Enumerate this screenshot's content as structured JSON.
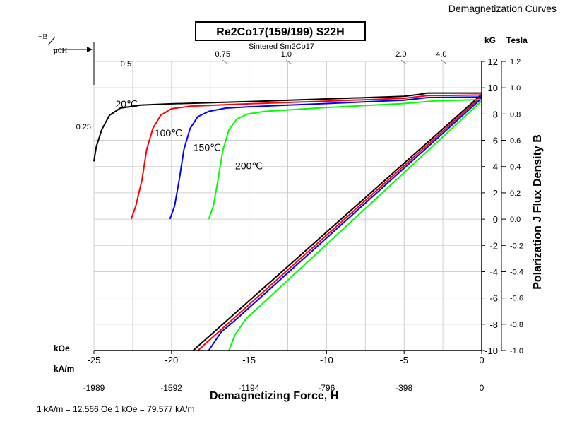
{
  "header": {
    "title": "Demagnetization Curves"
  },
  "title_box": "Re2Co17(159/199) S22H",
  "subtitle": "Sintered Sm2Co17",
  "footer_note": "1 kA/m = 12.566 Oe 1 kOe = 79.577 kA/m",
  "axes": {
    "x_label": "Demagnetizing Force, H",
    "koe_label": "kOe",
    "kam_label": "kA/m",
    "y_left_unit": "kG",
    "y_right_unit": "Tesla",
    "y_title": "Polarization J Flux Density B",
    "b_symbol": "−B",
    "mu_h_symbol": "μ0H"
  },
  "chart_data": {
    "type": "line",
    "title": "Re2Co17(159/199) S22H",
    "xlabel": "Demagnetizing Force, H",
    "ylabel": "Polarization J Flux Density B",
    "x_unit": "kOe",
    "y_unit": "kG",
    "xlim": [
      -25,
      0
    ],
    "ylim": [
      -10,
      12
    ],
    "grid": true,
    "x_ticks_koe": [
      -25,
      -20,
      -15,
      -10,
      -5,
      0
    ],
    "x_ticks_koe_labels": [
      "-25",
      "-20",
      "-15",
      "-10",
      "-5",
      "0"
    ],
    "x_ticks_kam": [
      -1989,
      -1592,
      -1194,
      -796,
      -398,
      0
    ],
    "x_ticks_kam_labels": [
      "-1989",
      "-1592",
      "-1194",
      "-796",
      "-398",
      "0"
    ],
    "y_ticks_kg": [
      -10,
      -8,
      -6,
      -4,
      -2,
      0,
      2,
      4,
      6,
      8,
      10,
      12
    ],
    "y_ticks_kg_labels": [
      "-10",
      "-8",
      "-6",
      "-4",
      "-2",
      "0",
      "2",
      "4",
      "6",
      "8",
      "10",
      "12"
    ],
    "y_ticks_tesla": [
      -1.0,
      -0.8,
      -0.6,
      -0.4,
      -0.2,
      0,
      0.2,
      0.4,
      0.6,
      0.8,
      1.0,
      1.2
    ],
    "y_ticks_tesla_labels": [
      "-1.0",
      "-0.8",
      "-0.6",
      "-0.4",
      "-0.2",
      "0.0",
      "0.2",
      "0.4",
      "0.6",
      "0.8",
      "1.0",
      "1.2"
    ],
    "load_lines": [
      {
        "label": "0.5",
        "x": -22.4,
        "y": 11.2
      },
      {
        "label": "0.75",
        "x": -16.7,
        "y": 12.0
      },
      {
        "label": "1.0",
        "x": -12.6,
        "y": 12.0
      },
      {
        "label": "2.0",
        "x": -5.2,
        "y": 12.0
      },
      {
        "label": "4.0",
        "x": -2.6,
        "y": 12.0
      },
      {
        "label": "0.25",
        "x": -25,
        "y": 6.4
      }
    ],
    "series": [
      {
        "name": "20℃",
        "color": "#000000",
        "label_at": [
          -22.9,
          8.5
        ],
        "j": [
          [
            -25.0,
            4.4
          ],
          [
            -24.85,
            5.5
          ],
          [
            -24.5,
            6.8
          ],
          [
            -24.0,
            7.9
          ],
          [
            -23.3,
            8.45
          ],
          [
            -22.0,
            8.68
          ],
          [
            -20.0,
            8.78
          ],
          [
            -15.0,
            8.95
          ],
          [
            -10.0,
            9.15
          ],
          [
            -5.0,
            9.35
          ],
          [
            -4.0,
            9.5
          ],
          [
            -3.5,
            9.6
          ],
          [
            -2.0,
            9.6
          ],
          [
            0.0,
            9.6
          ]
        ],
        "b": [
          [
            -18.6,
            -10.0
          ],
          [
            0.0,
            9.5
          ]
        ]
      },
      {
        "name": "100℃",
        "color": "#ff0000",
        "label_at": [
          -20.2,
          6.3
        ],
        "j": [
          [
            -22.6,
            0.0
          ],
          [
            -22.3,
            1.0
          ],
          [
            -21.9,
            3.0
          ],
          [
            -21.6,
            5.3
          ],
          [
            -21.2,
            6.9
          ],
          [
            -20.7,
            7.9
          ],
          [
            -20.0,
            8.4
          ],
          [
            -18.8,
            8.6
          ],
          [
            -15.0,
            8.78
          ],
          [
            -10.0,
            8.98
          ],
          [
            -5.0,
            9.2
          ],
          [
            -3.5,
            9.4
          ],
          [
            0.0,
            9.45
          ]
        ],
        "b": [
          [
            -18.3,
            -10.0
          ],
          [
            0.0,
            9.35
          ]
        ]
      },
      {
        "name": "150℃",
        "color": "#0000ff",
        "label_at": [
          -17.7,
          5.2
        ],
        "j": [
          [
            -20.1,
            0.0
          ],
          [
            -19.8,
            1.0
          ],
          [
            -19.5,
            3.0
          ],
          [
            -19.2,
            5.3
          ],
          [
            -18.8,
            6.9
          ],
          [
            -18.3,
            7.8
          ],
          [
            -17.6,
            8.2
          ],
          [
            -16.5,
            8.45
          ],
          [
            -15.0,
            8.55
          ],
          [
            -10.0,
            8.8
          ],
          [
            -5.0,
            9.05
          ],
          [
            -3.5,
            9.25
          ],
          [
            0.0,
            9.3
          ]
        ],
        "b": [
          [
            -17.6,
            -10.0
          ],
          [
            -16.8,
            -8.6
          ],
          [
            -15.8,
            -7.6
          ],
          [
            0.0,
            9.2
          ]
        ]
      },
      {
        "name": "200℃",
        "color": "#00ff00",
        "label_at": [
          -15.0,
          3.8
        ],
        "j": [
          [
            -17.6,
            0.0
          ],
          [
            -17.3,
            1.0
          ],
          [
            -17.0,
            3.0
          ],
          [
            -16.7,
            5.2
          ],
          [
            -16.3,
            6.8
          ],
          [
            -15.8,
            7.6
          ],
          [
            -15.1,
            8.0
          ],
          [
            -14.0,
            8.2
          ],
          [
            -10.0,
            8.5
          ],
          [
            -5.0,
            8.8
          ],
          [
            -3.0,
            9.0
          ],
          [
            0.0,
            9.1
          ]
        ],
        "b": [
          [
            -16.3,
            -10.0
          ],
          [
            -15.9,
            -8.8
          ],
          [
            -15.2,
            -7.6
          ],
          [
            0.0,
            9.0
          ]
        ]
      }
    ]
  }
}
